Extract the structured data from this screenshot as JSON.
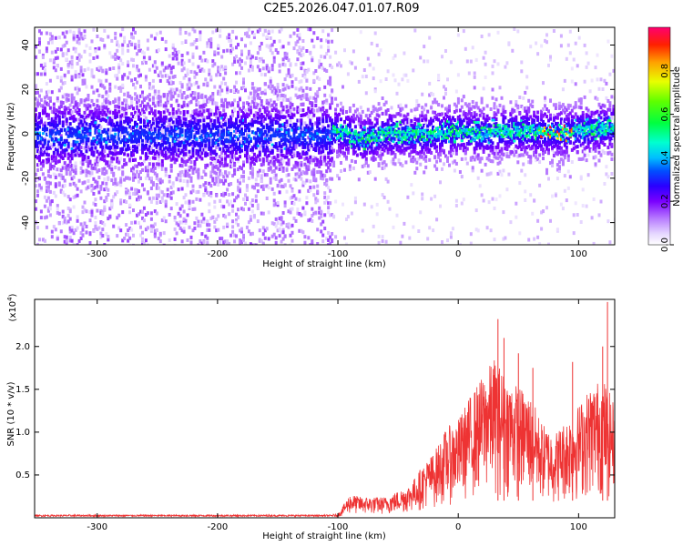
{
  "title": "C2E5.2026.047.01.07.R09",
  "chart_data": [
    {
      "type": "heatmap",
      "name": "spectrogram",
      "xlabel": "Height of straight line (km)",
      "ylabel": "Frequency (Hz)",
      "xlim": [
        -352,
        130
      ],
      "ylim": [
        -50,
        48
      ],
      "x_ticks": [
        -300,
        -200,
        -100,
        0,
        100
      ],
      "x_tick_labels": [
        "-300",
        "-200",
        "-100",
        "0",
        "100"
      ],
      "y_ticks": [
        -40,
        -20,
        0,
        20,
        40
      ],
      "y_tick_labels": [
        "-40",
        "-20",
        "0",
        "20",
        "40"
      ],
      "colorbar": {
        "label": "Normalized spectral amplitude",
        "range": [
          0,
          1
        ],
        "ticks": [
          0.0,
          0.2,
          0.4,
          0.6,
          0.8
        ],
        "tick_labels": [
          "0.0",
          "0.2",
          "0.4",
          "0.6",
          "0.8"
        ]
      },
      "noise_region_x": [
        -352,
        -105
      ],
      "signal_center_hz": [
        {
          "x": -100,
          "y": 2
        },
        {
          "x": -80,
          "y": -2
        },
        {
          "x": -60,
          "y": 1
        },
        {
          "x": -40,
          "y": 0
        },
        {
          "x": -20,
          "y": 1
        },
        {
          "x": 0,
          "y": 2
        },
        {
          "x": 20,
          "y": 1
        },
        {
          "x": 40,
          "y": 2
        },
        {
          "x": 60,
          "y": 2
        },
        {
          "x": 80,
          "y": 1
        },
        {
          "x": 100,
          "y": 2
        },
        {
          "x": 130,
          "y": 4
        }
      ]
    },
    {
      "type": "line",
      "name": "snr",
      "xlabel": "Height of straight line (km)",
      "ylabel": "SNR (10 * v/v)",
      "y_multiplier": "(x10",
      "y_multiplier_exp": "4",
      "y_multiplier_close": ")",
      "xlim": [
        -352,
        130
      ],
      "ylim": [
        0,
        2.55
      ],
      "x_ticks": [
        -300,
        -200,
        -100,
        0,
        100
      ],
      "x_tick_labels": [
        "-300",
        "-200",
        "-100",
        "0",
        "100"
      ],
      "y_ticks": [
        0.5,
        1.0,
        1.5,
        2.0
      ],
      "y_tick_labels": [
        "0.5",
        "1.0",
        "1.5",
        "2.0"
      ],
      "series": [
        {
          "name": "SNR",
          "color": "#ee3333",
          "envelope": [
            {
              "x": -352,
              "y": 0.03
            },
            {
              "x": -120,
              "y": 0.03
            },
            {
              "x": -100,
              "y": 0.04
            },
            {
              "x": -90,
              "y": 0.25
            },
            {
              "x": -80,
              "y": 0.22
            },
            {
              "x": -60,
              "y": 0.22
            },
            {
              "x": -40,
              "y": 0.35
            },
            {
              "x": -30,
              "y": 0.55
            },
            {
              "x": -20,
              "y": 0.7
            },
            {
              "x": -10,
              "y": 0.95
            },
            {
              "x": 0,
              "y": 1.05
            },
            {
              "x": 10,
              "y": 1.3
            },
            {
              "x": 20,
              "y": 1.5
            },
            {
              "x": 30,
              "y": 1.7
            },
            {
              "x": 40,
              "y": 1.5
            },
            {
              "x": 50,
              "y": 1.4
            },
            {
              "x": 60,
              "y": 1.3
            },
            {
              "x": 70,
              "y": 1.0
            },
            {
              "x": 80,
              "y": 0.9
            },
            {
              "x": 90,
              "y": 1.05
            },
            {
              "x": 100,
              "y": 1.2
            },
            {
              "x": 110,
              "y": 1.4
            },
            {
              "x": 120,
              "y": 1.5
            },
            {
              "x": 130,
              "y": 1.2
            }
          ],
          "peaks": [
            {
              "x": 33,
              "y": 2.32
            },
            {
              "x": 38,
              "y": 2.1
            },
            {
              "x": 50,
              "y": 1.92
            },
            {
              "x": 62,
              "y": 1.75
            },
            {
              "x": 95,
              "y": 1.82
            },
            {
              "x": 120,
              "y": 2.0
            },
            {
              "x": 124,
              "y": 2.52
            }
          ]
        }
      ]
    }
  ]
}
